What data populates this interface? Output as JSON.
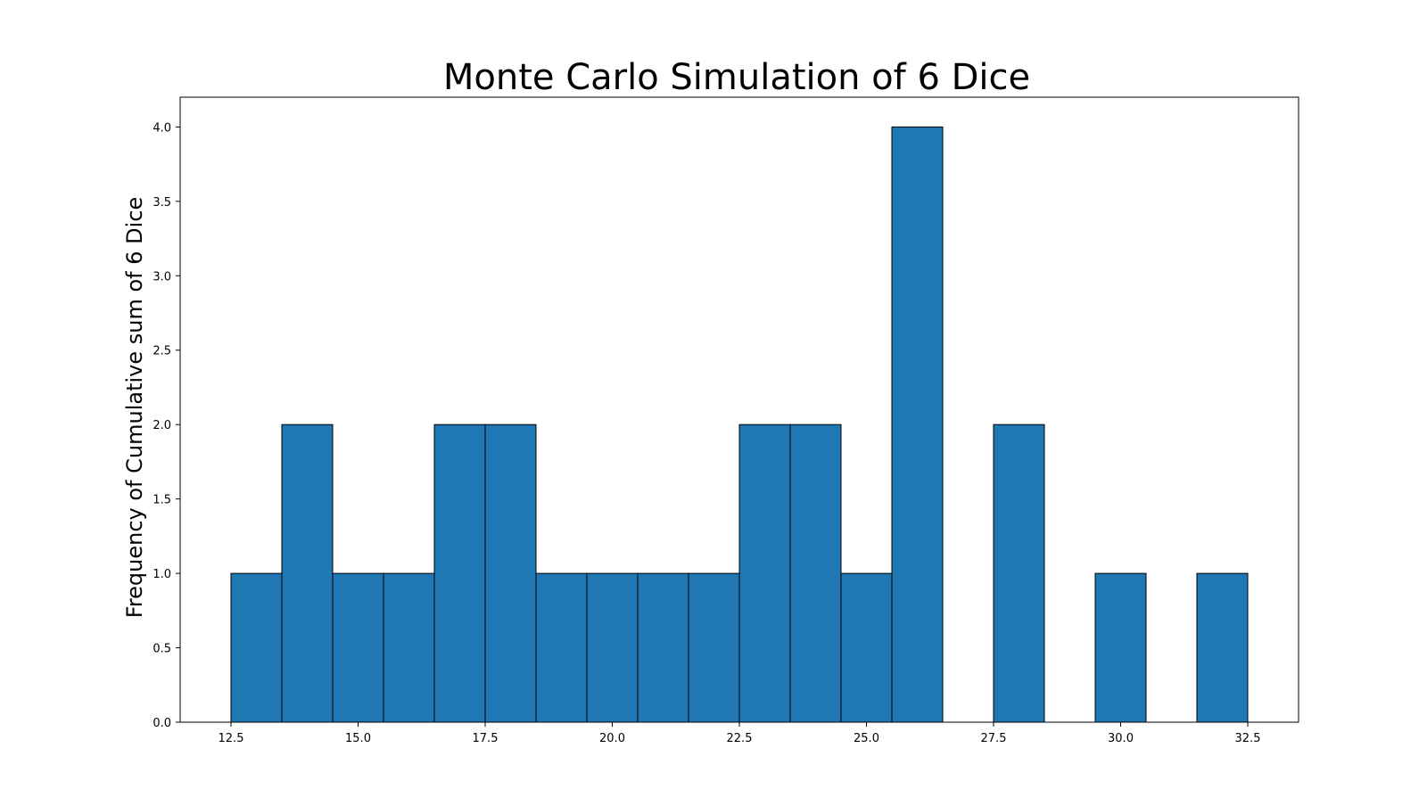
{
  "chart_data": {
    "type": "bar",
    "title": "Monte Carlo Simulation of 6 Dice",
    "xlabel": "",
    "ylabel": "Frequency of Cumulative sum of 6 Dice",
    "x": [
      13,
      14,
      15,
      16,
      17,
      18,
      19,
      20,
      21,
      22,
      23,
      24,
      25,
      26,
      28,
      30,
      32
    ],
    "values": [
      1,
      2,
      1,
      1,
      2,
      2,
      1,
      1,
      1,
      1,
      2,
      2,
      1,
      4,
      2,
      1,
      1
    ],
    "bar_width": 1,
    "xlim": [
      11.5,
      33.5
    ],
    "ylim": [
      0,
      4.2
    ],
    "xticks": [
      12.5,
      15.0,
      17.5,
      20.0,
      22.5,
      25.0,
      27.5,
      30.0,
      32.5
    ],
    "xtick_labels": [
      "12.5",
      "15.0",
      "17.5",
      "20.0",
      "22.5",
      "25.0",
      "27.5",
      "30.0",
      "32.5"
    ],
    "yticks": [
      0.0,
      0.5,
      1.0,
      1.5,
      2.0,
      2.5,
      3.0,
      3.5,
      4.0
    ],
    "ytick_labels": [
      "0.0",
      "0.5",
      "1.0",
      "1.5",
      "2.0",
      "2.5",
      "3.0",
      "3.5",
      "4.0"
    ],
    "grid": false,
    "legend": "none",
    "colors": {
      "bar_fill": "#1f77b4",
      "bar_edge": "#000000",
      "axes": "#000000"
    }
  }
}
